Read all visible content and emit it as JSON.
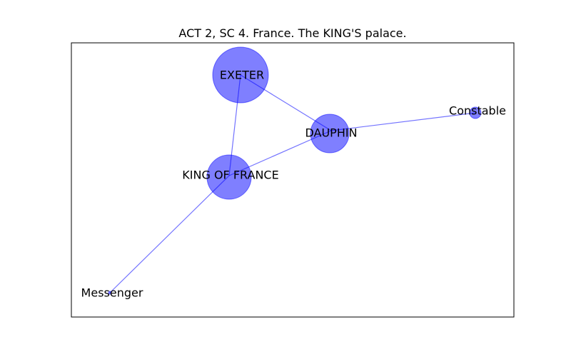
{
  "title": "ACT 2, SC 4. France. The KING'S palace.",
  "colors": {
    "node_fill": "#0000ff",
    "edge_stroke": "#0000ff",
    "frame": "#000000"
  },
  "graph": {
    "nodes": [
      {
        "id": "exeter",
        "label": "EXETER"
      },
      {
        "id": "dauphin",
        "label": "DAUPHIN"
      },
      {
        "id": "constable",
        "label": "Constable"
      },
      {
        "id": "king",
        "label": "KING OF FRANCE"
      },
      {
        "id": "messenger",
        "label": "Messenger"
      }
    ],
    "edges": [
      {
        "source": "exeter",
        "target": "dauphin"
      },
      {
        "source": "exeter",
        "target": "king"
      },
      {
        "source": "dauphin",
        "target": "constable"
      },
      {
        "source": "dauphin",
        "target": "king"
      },
      {
        "source": "king",
        "target": "messenger"
      }
    ]
  }
}
